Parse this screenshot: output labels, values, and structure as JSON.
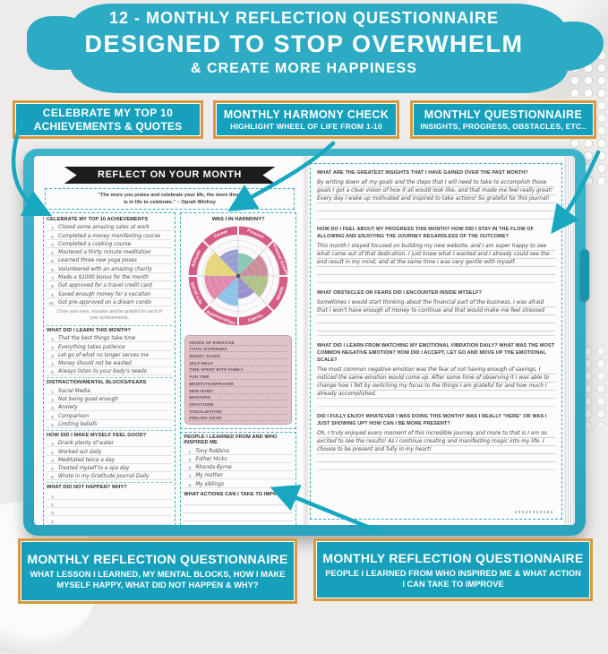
{
  "colors": {
    "teal": "#2dabc4",
    "callout_teal": "#17a0bb",
    "gold_border": "#d7993f",
    "ring_pink": "#d45c85",
    "tracker_bg": "#dcc4c9"
  },
  "header": {
    "line1": "12 - MONTHLY REFLECTION QUESTIONNAIRE",
    "line2": "DESIGNED TO STOP OVERWHELM",
    "line3": "& CREATE MORE HAPPINESS"
  },
  "callouts_top": [
    {
      "line1": "CELEBRATE MY TOP 10",
      "line2": "ACHIEVEMENTS & QUOTES"
    },
    {
      "line1": "MONTHLY HARMONY CHECK",
      "line2": "HIGHLIGHT WHEEL OF LIFE FROM 1-10"
    },
    {
      "line1": "MONTHLY QUESTIONNAIRE",
      "line2": "INSIGHTS, PROGRESS, OBSTACLES, ETC.."
    }
  ],
  "callouts_bottom": [
    {
      "line1": "MONTHLY REFLECTION QUESTIONNAIRE",
      "line2": "WHAT LESSON I LEARNED, MY MENTAL BLOCKS, HOW I MAKE MYSELF HAPPY, WHAT DID NOT HAPPEN & WHY?"
    },
    {
      "line1": "MONTHLY REFLECTION QUESTIONNAIRE",
      "line2": "PEOPLE I LEARNED FROM WHO INSPIRED ME & WHAT ACTION I CAN TAKE TO IMPROVE"
    }
  ],
  "left_page": {
    "banner": "REFLECT ON YOUR MONTH",
    "quote_line1": "\"The more you praise and celebrate your life, the more there",
    "quote_line2": "is in life to celebrate.\" ~ Oprah Winfrey",
    "achievements_heading": "CELEBRATE MY TOP 10 ACHIEVEMENTS",
    "achievements": [
      "Closed some amazing sales at work",
      "Completed a money manifesting course",
      "Completed a cooking course",
      "Mastered a thirty minute meditation",
      "Learned three new yoga poses",
      "Volunteered with an amazing charity",
      "Made a $1000 bonus for the month",
      "Got approved for a travel credit card",
      "Saved enough money for a vacation",
      "Got pre-approved on a dream condo"
    ],
    "note": "Close your eyes, visualize and be grateful for each of your achievements.",
    "learn_heading": "WHAT DID I LEARN THIS MONTH?",
    "learn": [
      "That the best things take time",
      "Everything takes patience",
      "Let go of what no longer serves me",
      "Money should not be wasted",
      "Always listen to your body's needs"
    ],
    "blocks_heading": "DISTRACTION/MENTAL BLOCKS/FEARS",
    "blocks": [
      "Social Media",
      "Not being good enough",
      "Anxiety",
      "Comparison",
      "Limiting beliefs"
    ],
    "feelgood_heading": "HOW DID I MAKE MYSELF FEEL GOOD?",
    "feelgood": [
      "Drank plenty of water",
      "Worked out daily",
      "Meditated twice a day",
      "Treated myself to a spa day",
      "Wrote in my Gratitude Journal Daily"
    ],
    "nothappen_heading": "WHAT DID NOT HAPPEN?  WHY?",
    "nothappen": [
      "",
      "",
      "",
      "",
      ""
    ],
    "tracker": [
      "HOURS OF EXERCISE",
      "TOTAL EXPENSES",
      "MONEY SAVED",
      "SELF-HELP",
      "TIME SPENT WITH FAMILY",
      "FUN TIME",
      "MEDITATION/PRAYER",
      "NEW HABIT",
      "MENTORS",
      "GRATITUDE",
      "VISUALIZATION",
      "FEELING GOOD"
    ],
    "people_heading": "PEOPLE I LEARNED FROM AND WHO INSPIRED ME",
    "people": [
      "Tony Robbins",
      "Esther Hicks",
      "Rhonda Byrne",
      "My mother",
      "My siblings"
    ],
    "actions_heading": "WHAT ACTIONS CAN I TAKE TO IMPROVE?",
    "actions_lines": [
      "",
      "",
      "",
      "",
      ""
    ]
  },
  "wheel": {
    "title": "WAS I IN HARMONY?",
    "ring_color": "#d45c85",
    "segments": [
      {
        "label": "Finance",
        "color": "#7bc4ae",
        "value": 5
      },
      {
        "label": "Personal Growth",
        "color": "#c77f8e",
        "value": 7
      },
      {
        "label": "Health",
        "color": "#a9bd7e",
        "value": 7
      },
      {
        "label": "Family",
        "color": "#8f84c6",
        "value": 5
      },
      {
        "label": "Relationships",
        "color": "#7fbde8",
        "value": 7
      },
      {
        "label": "Social Life",
        "color": "#e07ba3",
        "value": 8
      },
      {
        "label": "Attitude",
        "color": "#e8d36b",
        "value": 8
      },
      {
        "label": "Career",
        "color": "#8c93cf",
        "value": 6
      }
    ],
    "scale_min": 1,
    "scale_max": 10
  },
  "right_page": {
    "questions": [
      {
        "q": "WHAT ARE THE GREATEST INSIGHTS THAT I HAVE GAINED OVER THE PAST MONTH?",
        "a": "By writing down all my goals and the steps that I will need to take to accomplish those goals I got a clear vision of how it all would look like, and that made me feel really great! Every day I wake up motivated and inspired to take actions! So grateful for this journal!"
      },
      {
        "q": "HOW DO I FEEL ABOUT MY PROGRESS THIS MONTH? HOW DID I STAY IN THE FLOW OF ALLOWING AND ENJOYING THE JOURNEY REGARDLESS OF THE OUTCOME?",
        "a": "This month I stayed focused on building my new website, and I am super happy to see what came out of that dedication. I just knew what I wanted and I already could see the end result in my mind, and at the same time I was very gentle with myself."
      },
      {
        "q": "WHAT OBSTACLES OR FEARS DID I ENCOUNTER INSIDE MYSELF?",
        "a": "Sometimes I would start thinking about the financial part of the business, I was afraid that I won't have enough of money to continue and that would make me feel stressed"
      },
      {
        "q": "WHAT DID I LEARN FROM WATCHING MY EMOTIONAL VIBRATION DAILY? WHAT WAS THE MOST COMMON NEGATIVE EMOTION? HOW DID I ACCEPT, LET GO AND MOVE UP THE EMOTIONAL SCALE?",
        "a": "The most common negative emotion was the fear of not having enough of savings. I noticed the same emotion would come up. After some time of observing it I was able to change how I felt by switching my focus to the things I am grateful for and how much I already accomplished."
      },
      {
        "q": "DID I FULLY ENJOY WHATEVER I WAS DOING THIS MONTH? WAS I REALLY \"HERE\" OR WAS I JUST SHOWING UP? HOW CAN I BE MORE PRESENT?",
        "a": "Oh, I truly enjoyed every moment of this incredible journey and more to that is I am so excited to see the results! As I continue creating and manifesting magic into my life. I choose to be present and fully in my heart!"
      }
    ]
  }
}
